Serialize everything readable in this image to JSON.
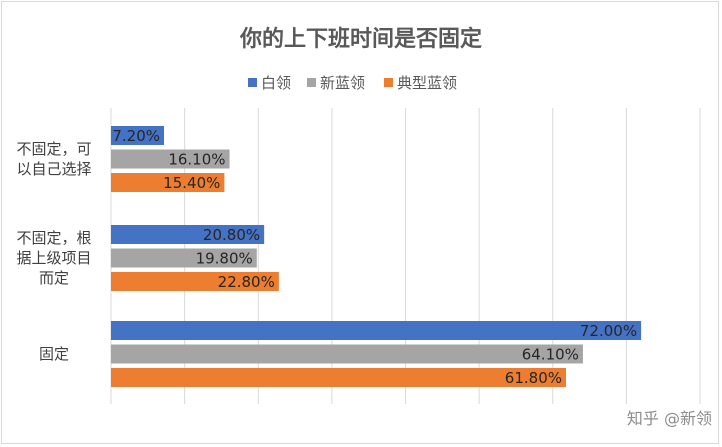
{
  "chart_data": {
    "type": "bar",
    "orientation": "horizontal",
    "title": "你的上下班时间是否固定",
    "categories": [
      [
        "不固定，可",
        "以自己选择"
      ],
      [
        "不固定，根",
        "据上级项目",
        "而定"
      ],
      [
        "固定"
      ]
    ],
    "series": [
      {
        "name": "白领",
        "color": "#4472c4",
        "values": [
          7.2,
          20.8,
          72.0
        ],
        "labels": [
          "7.20%",
          "20.80%",
          "72.00%"
        ]
      },
      {
        "name": "新蓝领",
        "color": "#a5a5a5",
        "values": [
          16.1,
          19.8,
          64.1
        ],
        "labels": [
          "16.10%",
          "19.80%",
          "64.10%"
        ]
      },
      {
        "name": "典型蓝领",
        "color": "#ed7d31",
        "values": [
          15.4,
          22.8,
          61.8
        ],
        "labels": [
          "15.40%",
          "22.80%",
          "61.80%"
        ]
      }
    ],
    "xlim": [
      0,
      80
    ],
    "x_tick_step": 10,
    "grid": true,
    "legend_position": "top"
  },
  "watermark": "知乎 @新领"
}
